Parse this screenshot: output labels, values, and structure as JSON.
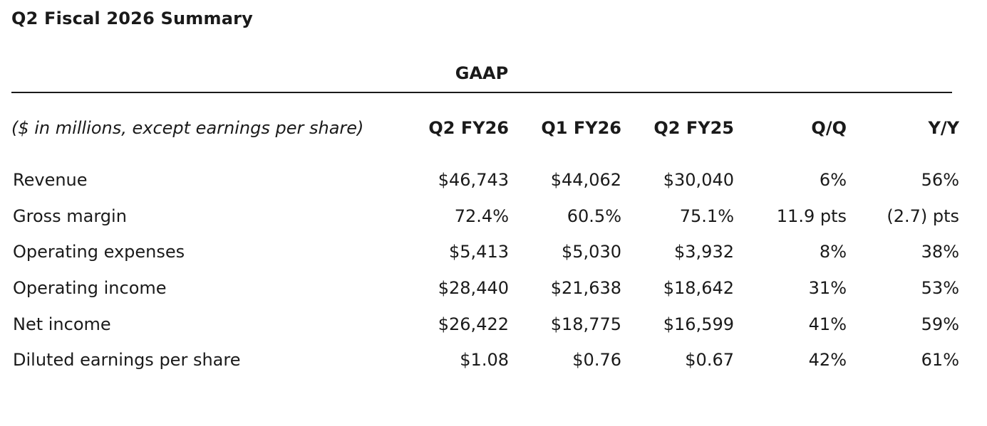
{
  "title": "Q2 Fiscal 2026 Summary",
  "section_label": "GAAP",
  "units_note": "($ in millions, except earnings per share)",
  "columns": [
    "Q2 FY26",
    "Q1 FY26",
    "Q2 FY25",
    "Q/Q",
    "Y/Y"
  ],
  "rows": [
    {
      "label": "Revenue",
      "values": [
        "$46,743",
        "$44,062",
        "$30,040",
        "6%",
        "56%"
      ]
    },
    {
      "label": "Gross margin",
      "values": [
        "72.4%",
        "60.5%",
        "75.1%",
        "11.9 pts",
        "(2.7) pts"
      ]
    },
    {
      "label": "Operating expenses",
      "values": [
        "$5,413",
        "$5,030",
        "$3,932",
        "8%",
        "38%"
      ]
    },
    {
      "label": "Operating income",
      "values": [
        "$28,440",
        "$21,638",
        "$18,642",
        "31%",
        "53%"
      ]
    },
    {
      "label": "Net income",
      "values": [
        "$26,422",
        "$18,775",
        "$16,599",
        "41%",
        "59%"
      ]
    },
    {
      "label": "Diluted earnings per share",
      "values": [
        "$1.08",
        "$0.76",
        "$0.67",
        "42%",
        "61%"
      ]
    }
  ]
}
